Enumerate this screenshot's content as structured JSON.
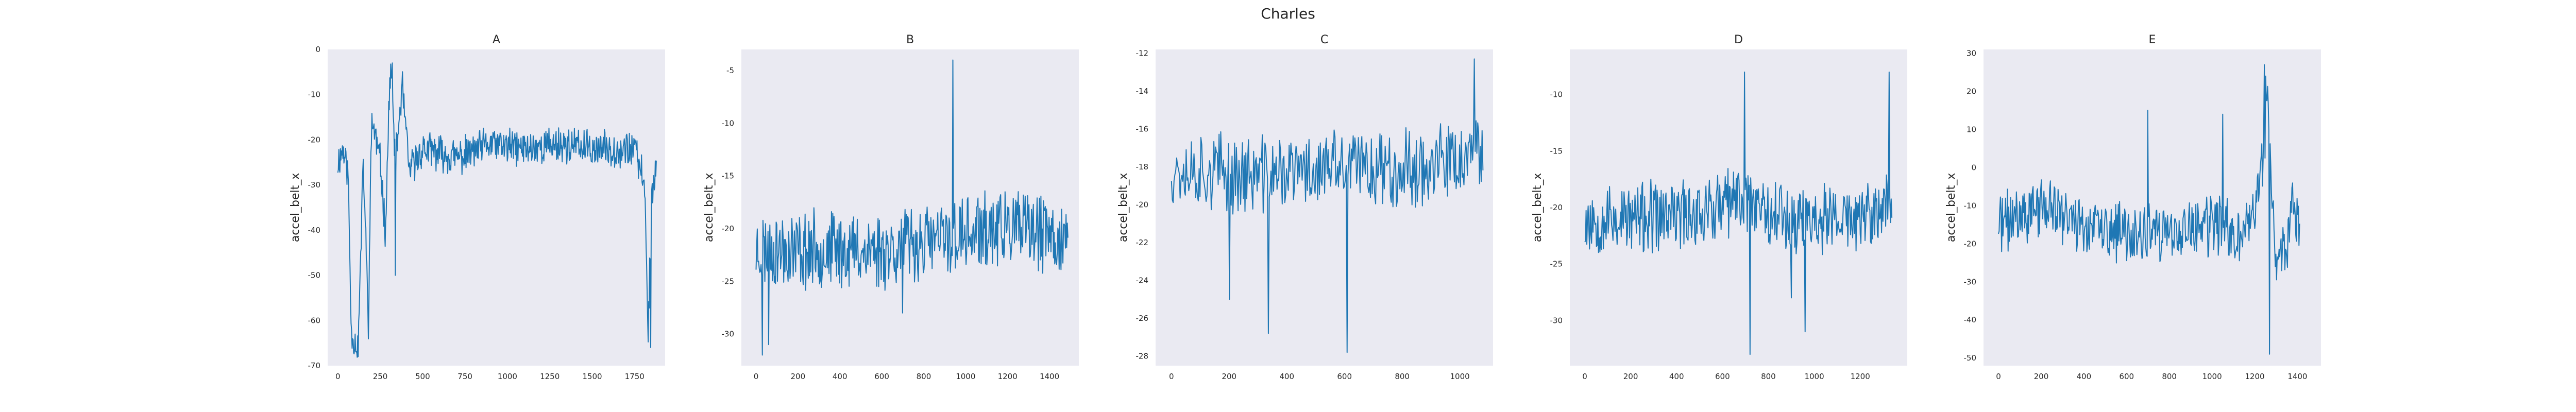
{
  "chart_data": {
    "title": "Charles",
    "grid": false,
    "line_color": "#1f77b4",
    "background_color": "#eaeaf2",
    "panels": [
      {
        "type": "line",
        "title": "A",
        "ylabel": "accel_belt_x",
        "xlim": [
          -60,
          1930
        ],
        "ylim": [
          -70,
          0
        ],
        "xticks": [
          0,
          250,
          500,
          750,
          1000,
          1250,
          1500,
          1750
        ],
        "yticks": [
          0,
          -10,
          -20,
          -30,
          -40,
          -50,
          -60,
          -70
        ],
        "x_max": 1880,
        "keypoints": [
          [
            0,
            -25
          ],
          [
            30,
            -22
          ],
          [
            60,
            -27
          ],
          [
            80,
            -63
          ],
          [
            120,
            -66
          ],
          [
            150,
            -25
          ],
          [
            180,
            -60
          ],
          [
            200,
            -15
          ],
          [
            250,
            -25
          ],
          [
            280,
            -40
          ],
          [
            310,
            -3
          ],
          [
            340,
            -25
          ],
          [
            380,
            -8
          ],
          [
            420,
            -27
          ],
          [
            500,
            -22
          ],
          [
            700,
            -24
          ],
          [
            900,
            -21
          ],
          [
            1100,
            -22
          ],
          [
            1300,
            -21
          ],
          [
            1500,
            -22
          ],
          [
            1750,
            -22
          ],
          [
            1810,
            -30
          ],
          [
            1830,
            -63
          ],
          [
            1850,
            -33
          ],
          [
            1880,
            -25
          ]
        ],
        "jitter": 3.5,
        "spikes": [
          [
            320,
            -3
          ],
          [
            385,
            -9
          ],
          [
            340,
            -50
          ],
          [
            1845,
            -66
          ]
        ],
        "seed": 11
      },
      {
        "type": "line",
        "title": "B",
        "ylabel": "accel_belt_x",
        "xlim": [
          -70,
          1540
        ],
        "ylim": [
          -33,
          -3
        ],
        "xticks": [
          0,
          200,
          400,
          600,
          800,
          1000,
          1200,
          1400
        ],
        "yticks": [
          -5,
          -10,
          -15,
          -20,
          -25,
          -30
        ],
        "x_max": 1490,
        "keypoints": [
          [
            0,
            -22
          ],
          [
            300,
            -22
          ],
          [
            600,
            -22
          ],
          [
            900,
            -21
          ],
          [
            1200,
            -20
          ],
          [
            1490,
            -21
          ]
        ],
        "jitter": 3.2,
        "spikes": [
          [
            940,
            -4
          ],
          [
            30,
            -32
          ],
          [
            60,
            -31
          ],
          [
            700,
            -28
          ]
        ],
        "seed": 23
      },
      {
        "type": "line",
        "title": "C",
        "ylabel": "accel_belt_x",
        "xlim": [
          -55,
          1115
        ],
        "ylim": [
          -28.5,
          -11.8
        ],
        "xticks": [
          0,
          200,
          400,
          600,
          800,
          1000
        ],
        "yticks": [
          -12,
          -14,
          -16,
          -18,
          -20,
          -22,
          -24,
          -26,
          -28
        ],
        "x_max": 1080,
        "keypoints": [
          [
            0,
            -18
          ],
          [
            300,
            -18.5
          ],
          [
            600,
            -18
          ],
          [
            900,
            -18
          ],
          [
            1080,
            -17.5
          ]
        ],
        "jitter": 1.8,
        "spikes": [
          [
            1050,
            -12.3
          ],
          [
            610,
            -27.8
          ],
          [
            335,
            -26.8
          ],
          [
            200,
            -25
          ]
        ],
        "seed": 37
      },
      {
        "type": "line",
        "title": "D",
        "ylabel": "accel_belt_x",
        "xlim": [
          -65,
          1405
        ],
        "ylim": [
          -34,
          -6
        ],
        "xticks": [
          0,
          200,
          400,
          600,
          800,
          1000,
          1200
        ],
        "yticks": [
          -10,
          -15,
          -20,
          -25,
          -30
        ],
        "x_max": 1340,
        "keypoints": [
          [
            0,
            -21
          ],
          [
            300,
            -21
          ],
          [
            600,
            -20
          ],
          [
            700,
            -19
          ],
          [
            900,
            -21
          ],
          [
            1200,
            -21
          ],
          [
            1330,
            -20
          ],
          [
            1340,
            -22
          ]
        ],
        "jitter": 2.8,
        "spikes": [
          [
            695,
            -8
          ],
          [
            1325,
            -8
          ],
          [
            720,
            -33
          ],
          [
            960,
            -31
          ],
          [
            900,
            -28
          ]
        ],
        "seed": 53
      },
      {
        "type": "line",
        "title": "E",
        "ylabel": "accel_belt_x",
        "xlim": [
          -70,
          1510
        ],
        "ylim": [
          -52,
          31
        ],
        "xticks": [
          0,
          200,
          400,
          600,
          800,
          1000,
          1200,
          1400
        ],
        "yticks": [
          30,
          20,
          10,
          0,
          -10,
          -20,
          -30,
          -40,
          -50
        ],
        "x_max": 1410,
        "keypoints": [
          [
            0,
            -15
          ],
          [
            200,
            -10
          ],
          [
            400,
            -15
          ],
          [
            600,
            -18
          ],
          [
            800,
            -18
          ],
          [
            1000,
            -15
          ],
          [
            1150,
            -18
          ],
          [
            1220,
            -5
          ],
          [
            1260,
            15
          ],
          [
            1300,
            -25
          ],
          [
            1350,
            -20
          ],
          [
            1380,
            -8
          ],
          [
            1410,
            -18
          ]
        ],
        "jitter": 7,
        "spikes": [
          [
            1245,
            27
          ],
          [
            1250,
            24
          ],
          [
            1270,
            -49
          ],
          [
            700,
            15
          ],
          [
            1050,
            14
          ]
        ],
        "seed": 71
      }
    ]
  }
}
